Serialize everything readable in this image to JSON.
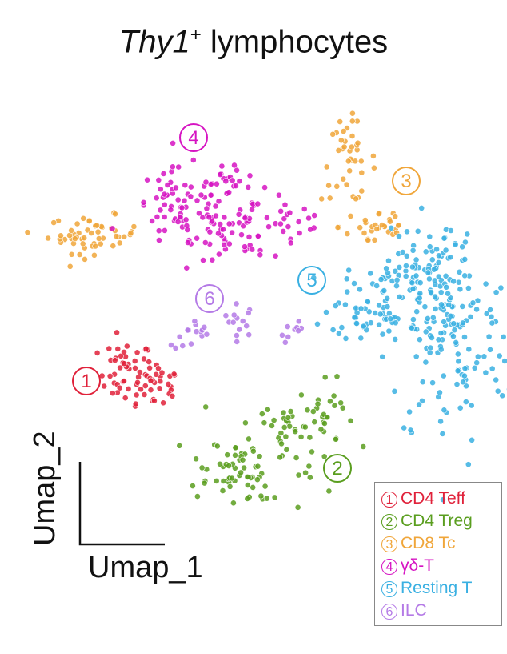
{
  "title": {
    "gene": "Thy1",
    "superscript": "+",
    "rest": " lymphocytes"
  },
  "chart_data": {
    "type": "scatter",
    "xlabel": "Umap_1",
    "ylabel": "Umap_2",
    "colors": {
      "1": "#e0213a",
      "2": "#5a9e1f",
      "3": "#f0a63a",
      "4": "#d614c2",
      "5": "#3ab0e2",
      "6": "#b47ae6"
    },
    "clusters": [
      {
        "id": "1",
        "marker": "①",
        "label": "CD4 Teff"
      },
      {
        "id": "2",
        "marker": "②",
        "label": "CD4 Treg"
      },
      {
        "id": "3",
        "marker": "③",
        "label": "CD8 Tc"
      },
      {
        "id": "4",
        "marker": "④",
        "label": "γδ-T"
      },
      {
        "id": "5",
        "marker": "⑤",
        "label": "Resting T"
      },
      {
        "id": "6",
        "marker": "⑥",
        "label": "ILC"
      }
    ],
    "x_range": [
      0,
      100
    ],
    "y_range": [
      0,
      100
    ],
    "points_note": "Approximate UMAP embedding; relative coordinates only (no numeric ticks printed)."
  },
  "labels_on_plot": [
    "1",
    "2",
    "3",
    "4",
    "5",
    "6"
  ]
}
